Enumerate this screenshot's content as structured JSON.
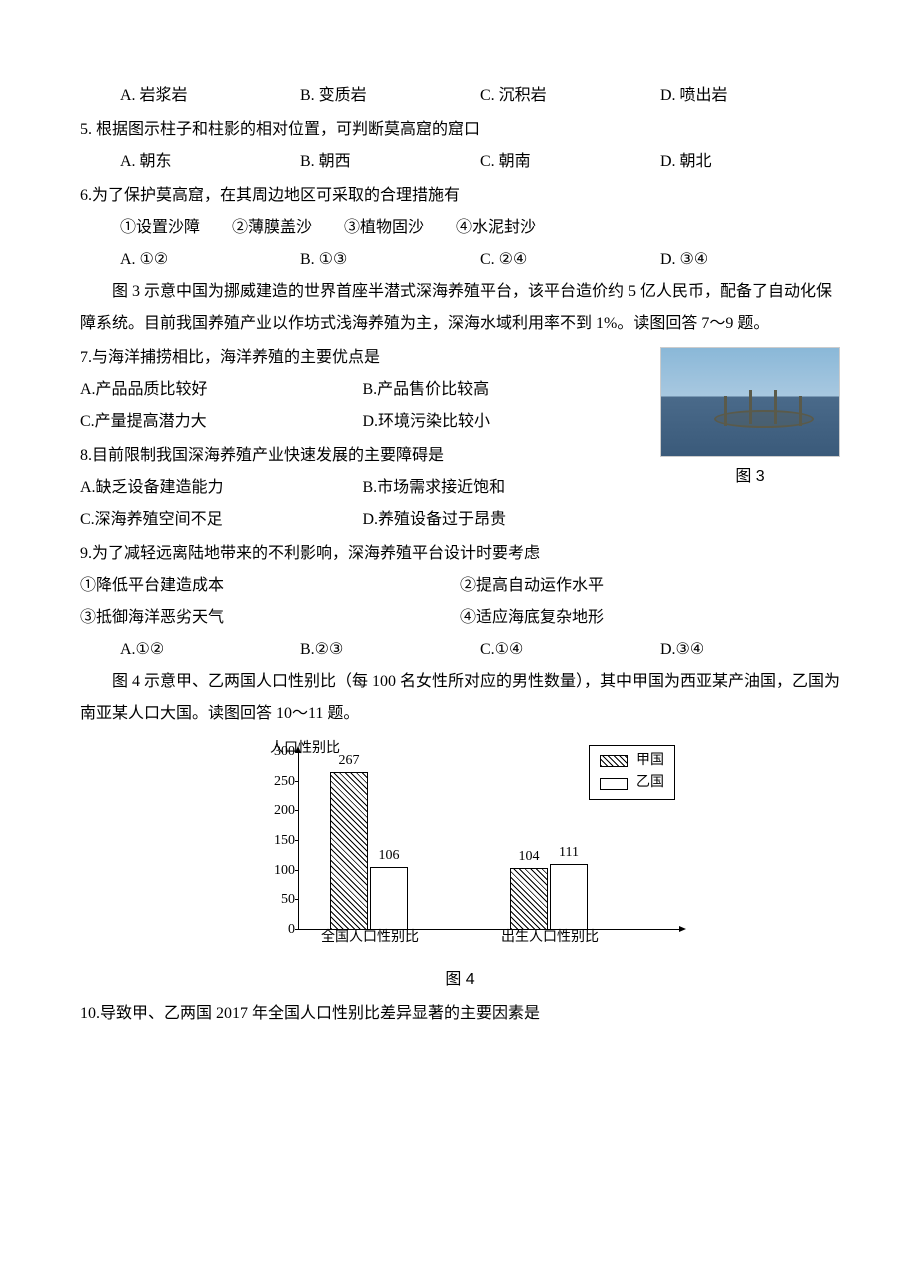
{
  "q4": {
    "optA": "A. 岩浆岩",
    "optB": "B. 变质岩",
    "optC": "C. 沉积岩",
    "optD": "D. 喷出岩"
  },
  "q5": {
    "stem": "5. 根据图示柱子和柱影的相对位置，可判断莫高窟的窟口",
    "optA": "A. 朝东",
    "optB": "B. 朝西",
    "optC": "C. 朝南",
    "optD": "D. 朝北"
  },
  "q6": {
    "stem": "6.为了保护莫高窟，在其周边地区可采取的合理措施有",
    "items": "①设置沙障　　②薄膜盖沙　　③植物固沙　　④水泥封沙",
    "optA": "A. ①②",
    "optB": "B. ①③",
    "optC": "C. ②④",
    "optD": "D. ③④"
  },
  "passage2": "图 3 示意中国为挪威建造的世界首座半潜式深海养殖平台，该平台造价约 5 亿人民币，配备了自动化保障系统。目前我国养殖产业以作坊式浅海养殖为主，深海水域利用率不到 1%。读图回答 7～9 题。",
  "figure3_caption": "图 3",
  "q7": {
    "stem": "7.与海洋捕捞相比，海洋养殖的主要优点是",
    "optA": "A.产品品质比较好",
    "optB": "B.产品售价比较高",
    "optC": "C.产量提高潜力大",
    "optD": "D.环境污染比较小"
  },
  "q8": {
    "stem": "8.目前限制我国深海养殖产业快速发展的主要障碍是",
    "optA": "A.缺乏设备建造能力",
    "optB": "B.市场需求接近饱和",
    "optC": "C.深海养殖空间不足",
    "optD": "D.养殖设备过于昂贵"
  },
  "q9": {
    "stem": "9.为了减轻远离陆地带来的不利影响，深海养殖平台设计时要考虑",
    "item1": "①降低平台建造成本",
    "item2": "②提高自动运作水平",
    "item3": "③抵御海洋恶劣天气",
    "item4": "④适应海底复杂地形",
    "optA": "A.①②",
    "optB": "B.②③",
    "optC": "C.①④",
    "optD": "D.③④"
  },
  "passage3": "图 4 示意甲、乙两国人口性别比（每 100 名女性所对应的男性数量），其中甲国为西亚某产油国，乙国为南亚某人口大国。读图回答 10～11 题。",
  "q10": {
    "stem": "10.导致甲、乙两国 2017 年全国人口性别比差异显著的主要因素是"
  },
  "chart": {
    "type": "bar",
    "y_axis_label": "人口性别比",
    "caption": "图 4",
    "ylim_min": 0,
    "ylim_max": 300,
    "ytick_step": 50,
    "yticks": [
      "0",
      "50",
      "100",
      "150",
      "200",
      "250",
      "300"
    ],
    "categories": [
      "全国人口性别比",
      "出生人口性别比"
    ],
    "series": [
      {
        "name": "甲国",
        "pattern": "hatched",
        "values": [
          267,
          104
        ]
      },
      {
        "name": "乙国",
        "pattern": "white",
        "values": [
          106,
          111
        ]
      }
    ],
    "bar_labels": [
      [
        "267",
        "106"
      ],
      [
        "104",
        "111"
      ]
    ],
    "axis_color": "#000000",
    "background_color": "#ffffff",
    "label_fontsize": 14
  }
}
